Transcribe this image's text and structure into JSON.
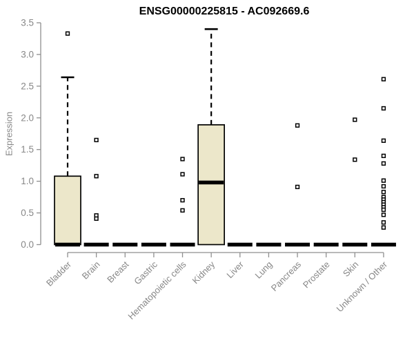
{
  "chart_data": {
    "type": "boxplot",
    "title": "ENSG00000225815 - AC092669.6",
    "ylabel": "Expression",
    "xlabel": "",
    "ylim": [
      0.0,
      3.5
    ],
    "ytick_labels": [
      "0.0",
      "0.5",
      "1.0",
      "1.5",
      "2.0",
      "2.5",
      "3.0",
      "3.5"
    ],
    "grid": false,
    "legend": false,
    "categories": [
      "Bladder",
      "Brain",
      "Breast",
      "Gastric",
      "Hematopoietic cells",
      "Kidney",
      "Liver",
      "Lung",
      "Pancreas",
      "Prostate",
      "Skin",
      "Unknown / Other"
    ],
    "series": [
      {
        "category": "Bladder",
        "whisker_low": 0,
        "q1": 0,
        "median": 0,
        "q3": 1.08,
        "whisker_high": 2.64,
        "outliers": [
          3.33
        ]
      },
      {
        "category": "Brain",
        "whisker_low": 0,
        "q1": 0,
        "median": 0,
        "q3": 0,
        "whisker_high": 0,
        "outliers": [
          1.65,
          1.08,
          0.46,
          0.41
        ]
      },
      {
        "category": "Breast",
        "whisker_low": 0,
        "q1": 0,
        "median": 0,
        "q3": 0,
        "whisker_high": 0,
        "outliers": []
      },
      {
        "category": "Gastric",
        "whisker_low": 0,
        "q1": 0,
        "median": 0,
        "q3": 0,
        "whisker_high": 0,
        "outliers": []
      },
      {
        "category": "Hematopoietic cells",
        "whisker_low": 0,
        "q1": 0,
        "median": 0,
        "q3": 0,
        "whisker_high": 0,
        "outliers": [
          1.35,
          1.11,
          0.7,
          0.54
        ]
      },
      {
        "category": "Kidney",
        "whisker_low": 0,
        "q1": 0,
        "median": 0.98,
        "q3": 1.89,
        "whisker_high": 3.4,
        "outliers": []
      },
      {
        "category": "Liver",
        "whisker_low": 0,
        "q1": 0,
        "median": 0,
        "q3": 0,
        "whisker_high": 0,
        "outliers": []
      },
      {
        "category": "Lung",
        "whisker_low": 0,
        "q1": 0,
        "median": 0,
        "q3": 0,
        "whisker_high": 0,
        "outliers": []
      },
      {
        "category": "Pancreas",
        "whisker_low": 0,
        "q1": 0,
        "median": 0,
        "q3": 0,
        "whisker_high": 0,
        "outliers": [
          1.88,
          0.91
        ]
      },
      {
        "category": "Prostate",
        "whisker_low": 0,
        "q1": 0,
        "median": 0,
        "q3": 0,
        "whisker_high": 0,
        "outliers": []
      },
      {
        "category": "Skin",
        "whisker_low": 0,
        "q1": 0,
        "median": 0,
        "q3": 0,
        "whisker_high": 0,
        "outliers": [
          1.97,
          1.34
        ]
      },
      {
        "category": "Unknown / Other",
        "whisker_low": 0,
        "q1": 0,
        "median": 0,
        "q3": 0,
        "whisker_high": 0,
        "outliers": [
          2.61,
          2.15,
          1.64,
          1.4,
          1.28,
          1.01,
          0.92,
          0.83,
          0.75,
          0.71,
          0.67,
          0.63,
          0.59,
          0.55,
          0.47,
          0.35,
          0.27
        ]
      }
    ],
    "colors": {
      "box_fill": "#ECE7CA",
      "box_border": "#000000",
      "median": "#000000",
      "whisker": "#000000",
      "outlier_border": "#000000",
      "outlier_fill": "#FFFFFF",
      "axis": "#8F8F8F",
      "axis_text": "#878787",
      "title": "#000000",
      "background": "#FFFFFF"
    }
  }
}
